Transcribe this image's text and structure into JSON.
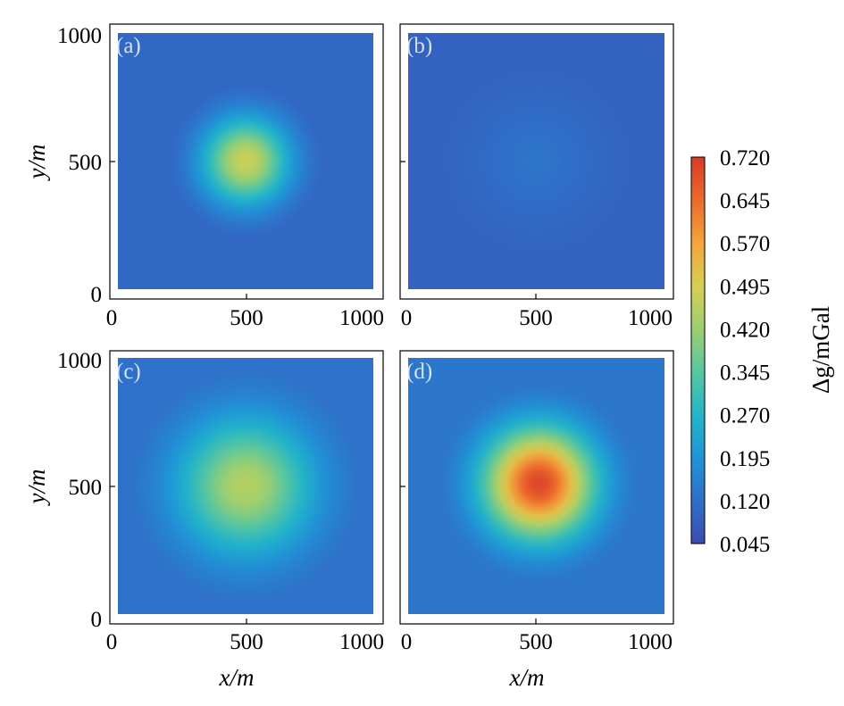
{
  "chart_data": [
    {
      "type": "heatmap",
      "panel_label": "(a)",
      "x_ticks": [
        "0",
        "500",
        "1000"
      ],
      "y_ticks": [
        "0",
        "500",
        "1000"
      ],
      "xlim": [
        0,
        1000
      ],
      "ylim": [
        0,
        1000
      ],
      "xlabel": "",
      "ylabel": "y/m",
      "field": {
        "background": 0.09,
        "peak": 0.48,
        "center": [
          500,
          500
        ],
        "radius": 300
      }
    },
    {
      "type": "heatmap",
      "panel_label": "(b)",
      "x_ticks": [
        "0",
        "500",
        "1000"
      ],
      "y_ticks": [],
      "xlim": [
        0,
        1000
      ],
      "ylim": [
        0,
        1000
      ],
      "xlabel": "",
      "ylabel": "",
      "field": {
        "background": 0.09,
        "peak": 0.13,
        "center": [
          500,
          500
        ],
        "radius": 450
      }
    },
    {
      "type": "heatmap",
      "panel_label": "(c)",
      "x_ticks": [
        "0",
        "500",
        "1000"
      ],
      "y_ticks": [
        "0",
        "500",
        "1000"
      ],
      "xlim": [
        0,
        1000
      ],
      "ylim": [
        0,
        1000
      ],
      "xlabel": "x/m",
      "ylabel": "y/m",
      "field": {
        "background": 0.11,
        "peak": 0.45,
        "center": [
          500,
          500
        ],
        "radius": 460
      }
    },
    {
      "type": "heatmap",
      "panel_label": "(d)",
      "x_ticks": [
        "0",
        "500",
        "1000"
      ],
      "y_ticks": [],
      "xlim": [
        0,
        1000
      ],
      "ylim": [
        0,
        1000
      ],
      "xlabel": "x/m",
      "ylabel": "",
      "field": {
        "background": 0.11,
        "peak": 0.7,
        "center": [
          510,
          510
        ],
        "radius": 380
      }
    }
  ],
  "colorbar": {
    "label": "Δg/mGal",
    "ticks": [
      "0.720",
      "0.645",
      "0.570",
      "0.495",
      "0.420",
      "0.345",
      "0.270",
      "0.195",
      "0.120",
      "0.045"
    ],
    "min": 0.045,
    "max": 0.72,
    "colormap": [
      "#3b4cb0",
      "#2f6fc9",
      "#1f95d6",
      "#23b5c8",
      "#58c6a0",
      "#9ccf6f",
      "#d6cf52",
      "#f3a53c",
      "#ec6a2c",
      "#d73a28"
    ]
  }
}
